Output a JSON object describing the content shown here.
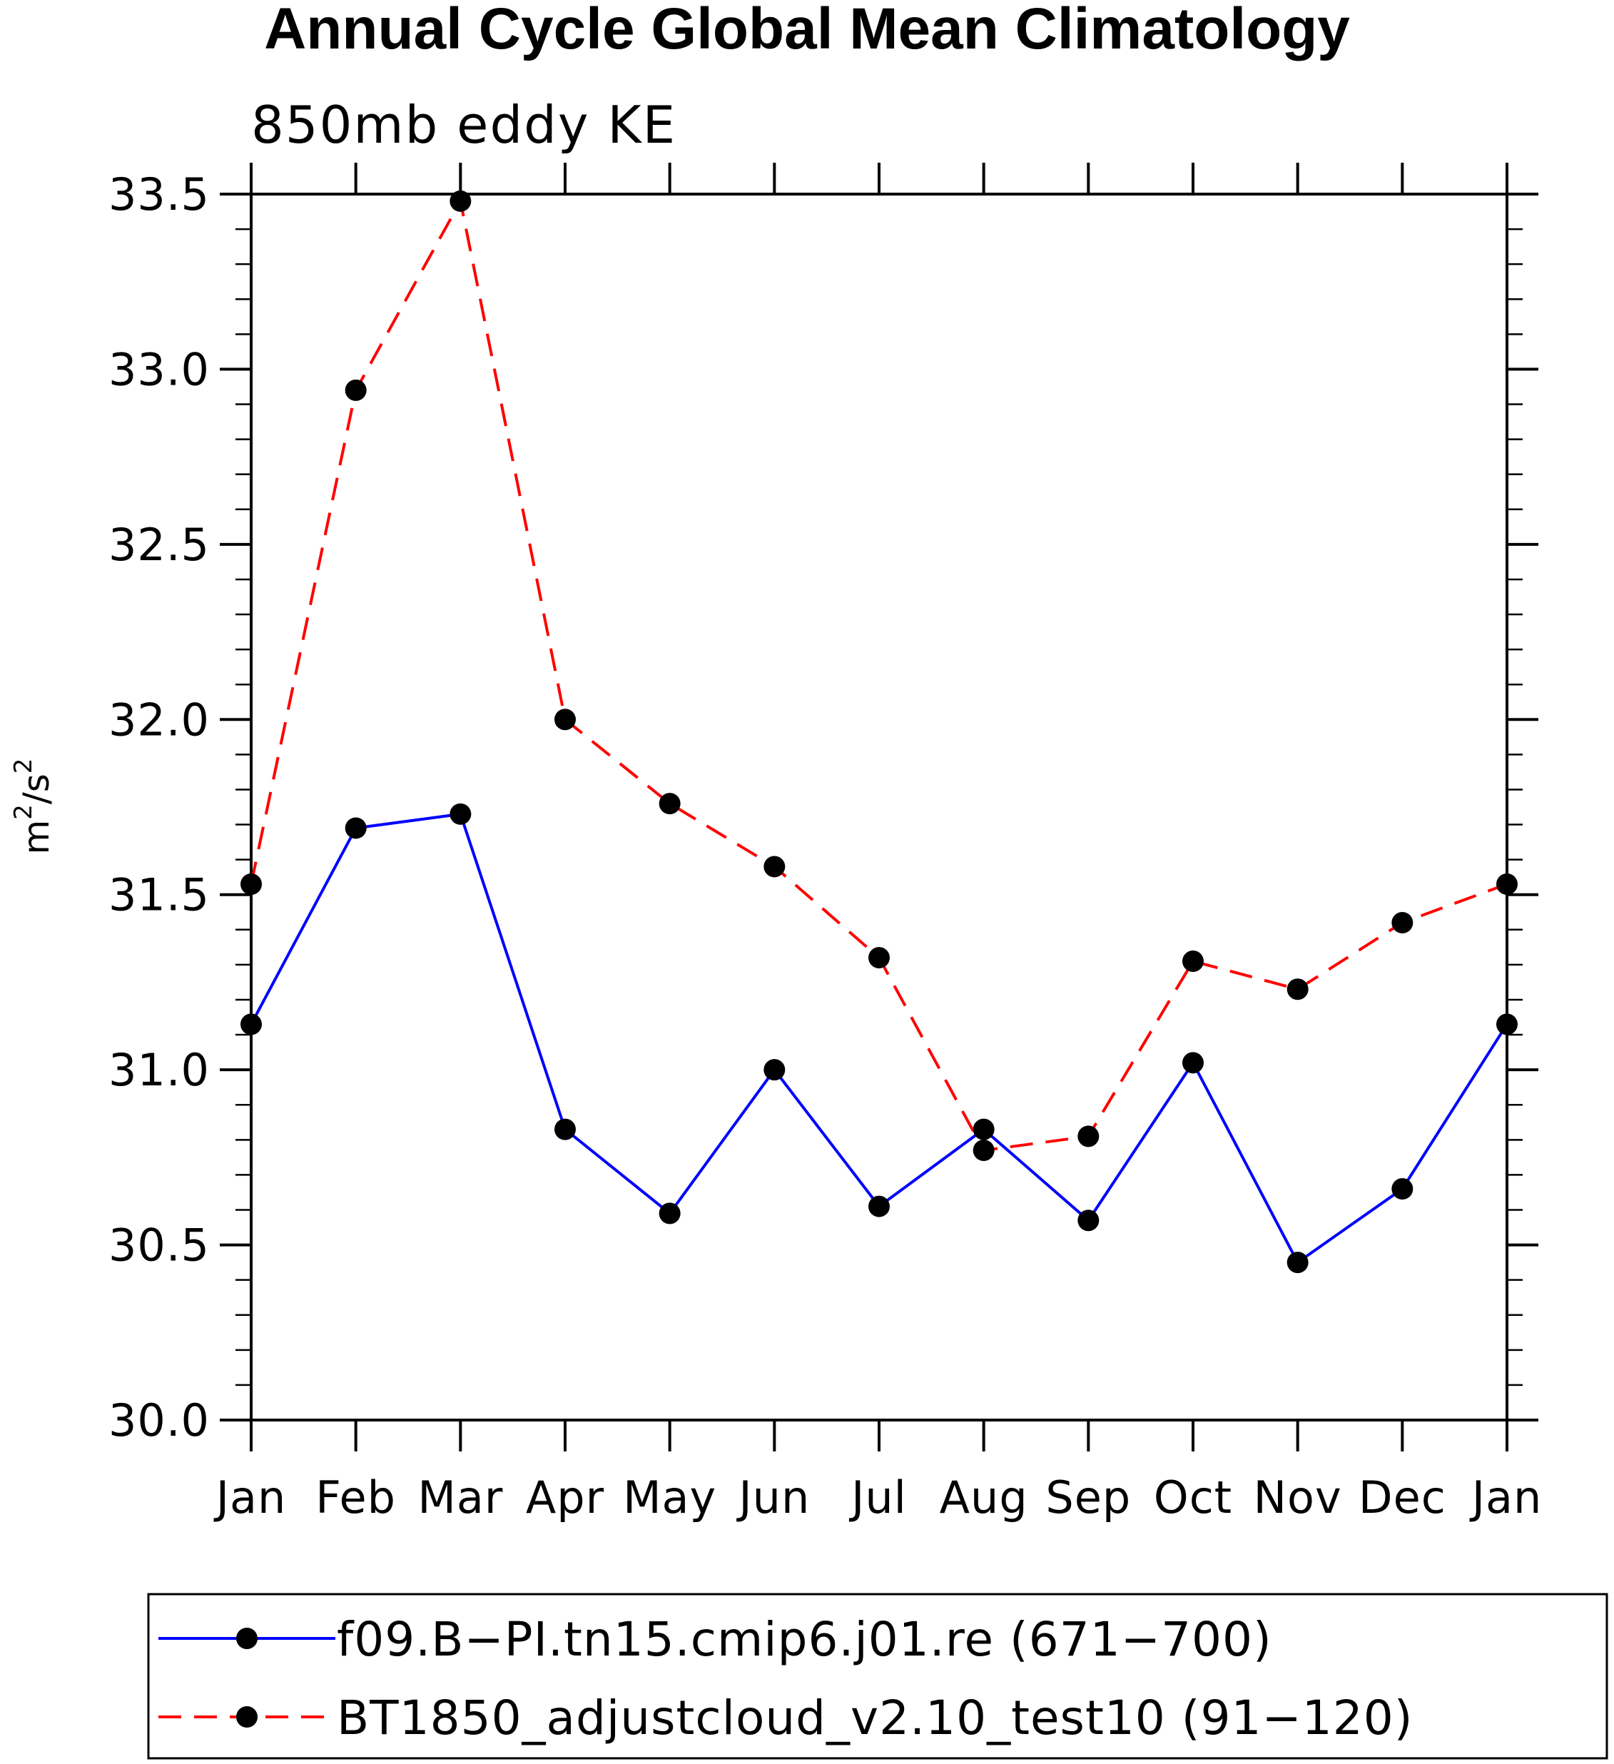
{
  "chart_data": {
    "type": "line",
    "title": "Annual Cycle Global Mean Climatology",
    "subtitle": "850mb eddy KE",
    "ylabel": "m²/s²",
    "ylabel_parts": {
      "base1": "m",
      "sup1": "2",
      "sep": "/s",
      "sup2": "2"
    },
    "xlabel": "",
    "categories": [
      "Jan",
      "Feb",
      "Mar",
      "Apr",
      "May",
      "Jun",
      "Jul",
      "Aug",
      "Sep",
      "Oct",
      "Nov",
      "Dec",
      "Jan"
    ],
    "ylim": [
      30.0,
      33.5
    ],
    "yticks": [
      30.0,
      30.5,
      31.0,
      31.5,
      32.0,
      32.5,
      33.0,
      33.5
    ],
    "ytick_labels": [
      "30.0",
      "30.5",
      "31.0",
      "31.5",
      "32.0",
      "32.5",
      "33.0",
      "33.5"
    ],
    "grid": false,
    "legend_position": "bottom",
    "series": [
      {
        "name": "f09.B-PI.tn15.cmip6.j01.re (671-700)",
        "label": "f09.B−PI.tn15.cmip6.j01.re (671−700)",
        "color": "#0000ff",
        "dash": "solid",
        "marker_color": "#000000",
        "values": [
          31.13,
          31.69,
          31.73,
          30.83,
          30.59,
          31.0,
          30.61,
          30.83,
          30.57,
          31.02,
          30.45,
          30.66,
          31.13
        ]
      },
      {
        "name": "BT1850_adjustcloud_v2.10_test10 (91-120)",
        "label": "BT1850_adjustcloud_v2.10_test10 (91−120)",
        "color": "#ff0000",
        "dash": "dashed",
        "marker_color": "#000000",
        "values": [
          31.53,
          32.94,
          33.48,
          32.0,
          31.76,
          31.58,
          31.32,
          30.77,
          30.81,
          31.31,
          31.23,
          31.42,
          31.53
        ]
      }
    ]
  }
}
